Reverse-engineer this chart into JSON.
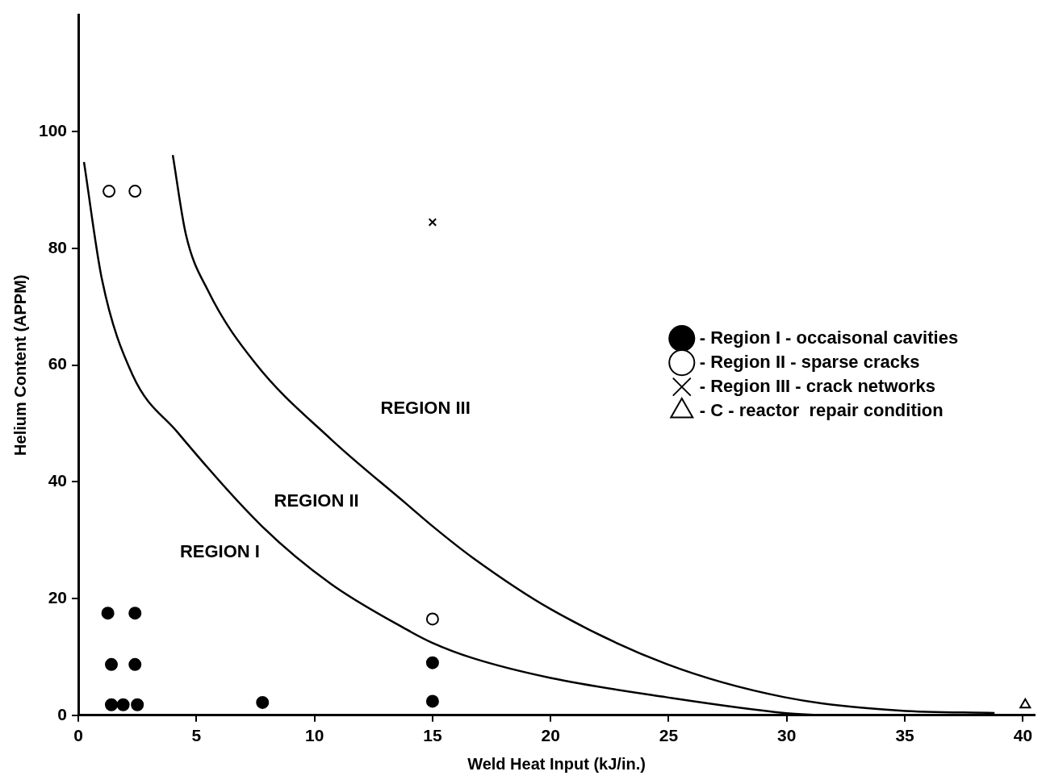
{
  "chart_data": {
    "type": "scatter",
    "xlabel": "Weld Heat Input (kJ/in.)",
    "ylabel": "Helium Content (APPM)",
    "xlim": [
      0,
      40.5
    ],
    "xticks": [
      0,
      5,
      10,
      15,
      20,
      25,
      30,
      35,
      40
    ],
    "ylim": [
      0,
      120
    ],
    "yticks": [
      0,
      20,
      40,
      60,
      80,
      100
    ],
    "grid": false,
    "legend": "right",
    "series": [
      {
        "name": "- Region I - occaisonal cavities",
        "color": "#000000",
        "marker": "circle",
        "x": [
          1.25,
          2.4,
          1.4,
          2.4,
          1.4,
          1.9,
          2.5,
          7.8,
          15,
          15
        ],
        "values": [
          17.5,
          17.5,
          8.7,
          8.7,
          1.8,
          1.8,
          1.8,
          2.2,
          9,
          2.4
        ]
      },
      {
        "name": "- Region II - sparse cracks",
        "color": "#000000",
        "marker": "circle",
        "x": [
          1.3,
          2.4,
          15
        ],
        "values": [
          89.8,
          89.8,
          16.5
        ]
      },
      {
        "name": "- Region III - crack networks",
        "color": "#000000",
        "marker": "cross",
        "x": [
          15
        ],
        "values": [
          84.5
        ]
      },
      {
        "name": "- C - reactor  repair condition",
        "color": "#000000",
        "marker": "triangle",
        "x": [
          40.1
        ],
        "values": [
          1.8
        ]
      },
      {
        "type": "line",
        "color": "#000000",
        "marker": "none",
        "x": [
          0.24,
          1.0,
          2.3,
          4.2,
          7.8,
          10.7,
          13.9,
          15,
          16.7,
          20,
          24.9,
          29.9,
          31.5
        ],
        "values": [
          94.8,
          74.7,
          58.3,
          48.5,
          32.3,
          22.5,
          14.7,
          12.4,
          9.8,
          6.4,
          3.1,
          0.4,
          0
        ]
      },
      {
        "type": "line",
        "color": "#000000",
        "marker": "none",
        "x": [
          4.0,
          4.55,
          5.5,
          7.5,
          10.7,
          13.9,
          15,
          16.7,
          20,
          24.9,
          29.9,
          34.8,
          38.8
        ],
        "values": [
          96,
          82.5,
          72.7,
          60.3,
          47.3,
          36.2,
          32.4,
          27,
          18.2,
          8.8,
          3.1,
          0.8,
          0.4
        ]
      }
    ],
    "annotations": [
      "REGION I",
      "REGION II",
      "REGION III"
    ]
  }
}
